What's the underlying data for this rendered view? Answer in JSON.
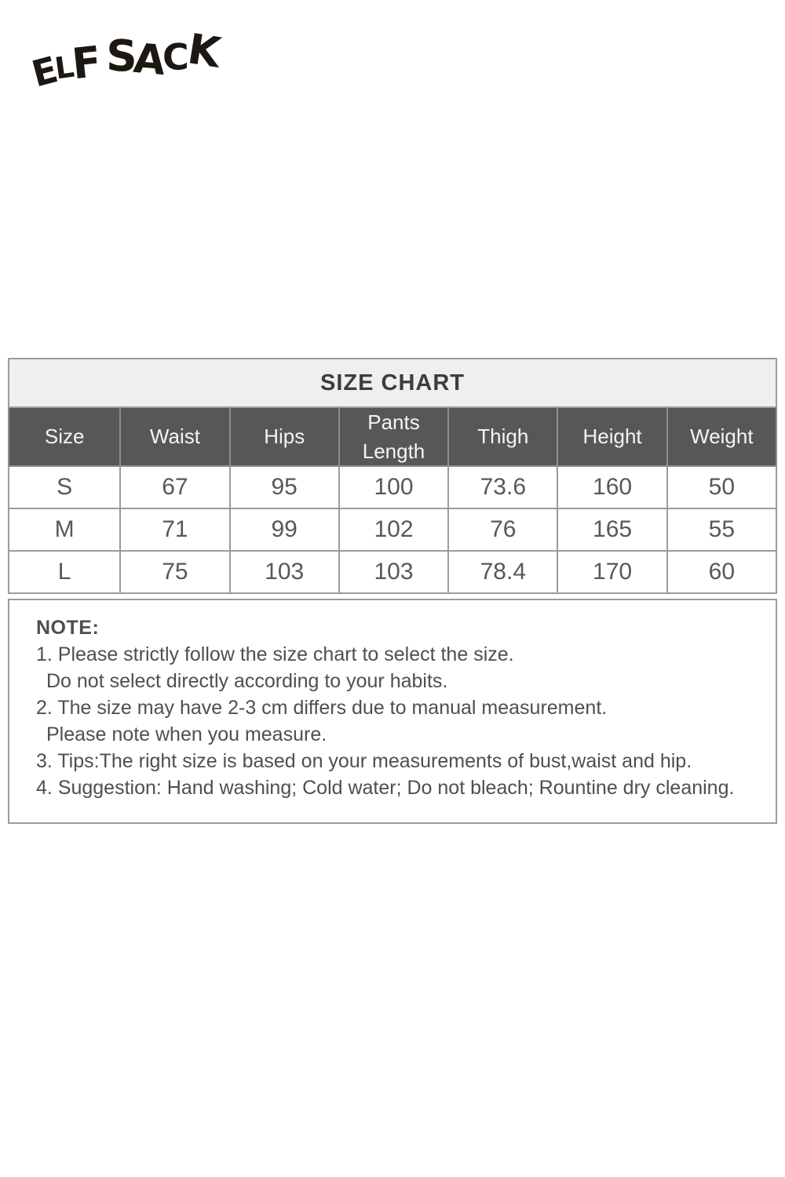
{
  "brand": {
    "name": "ELF SACK"
  },
  "size_chart": {
    "title": "SIZE CHART",
    "columns": [
      "Size",
      "Waist",
      "Hips",
      "Pants Length",
      "Thigh",
      "Height",
      "Weight"
    ],
    "rows": [
      [
        "S",
        "67",
        "95",
        "100",
        "73.6",
        "160",
        "50"
      ],
      [
        "M",
        "71",
        "99",
        "102",
        "76",
        "165",
        "55"
      ],
      [
        "L",
        "75",
        "103",
        "103",
        "78.4",
        "170",
        "60"
      ]
    ]
  },
  "notes": {
    "heading": "NOTE:",
    "lines": [
      "1. Please strictly follow the size chart to select the size.",
      "Do not select directly according to your habits.",
      "2. The size may have 2-3 cm differs due to manual measurement.",
      "Please note when you measure.",
      "3. Tips:The right size is based on your measurements of bust,waist and hip.",
      "4. Suggestion: Hand washing; Cold water; Do not bleach; Rountine dry cleaning."
    ]
  },
  "colors": {
    "header_bg": "#595656",
    "header_text": "#f5f4f4",
    "title_band_bg": "#f0efee",
    "title_text": "#3e3c3c",
    "border": "#9d9b9b",
    "body_text": "#595757",
    "note_text": "#504e4e",
    "logo": "#1d1712",
    "page_bg": "#ffffff"
  }
}
